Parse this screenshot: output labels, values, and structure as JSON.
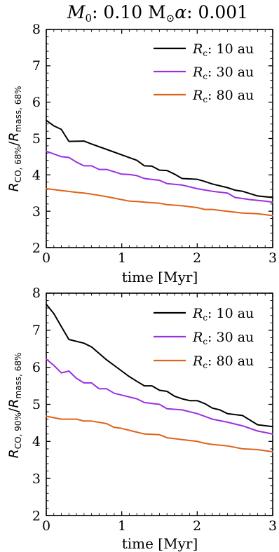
{
  "figure": {
    "title_parts": {
      "m_sym": "M",
      "m_sub": "0",
      "m_val": ": 0.10 M",
      "sun": "⊙",
      "alpha_sym": "α",
      "alpha_val": ": 0.001"
    }
  },
  "chart_data": [
    {
      "type": "line",
      "xlabel": "time [Myr]",
      "ylabel_parts": {
        "r": "R",
        "sub_num": "CO, 68%",
        "slash": "/",
        "r2": "R",
        "sub_den": "mass, 68%"
      },
      "xlim": [
        0,
        3
      ],
      "ylim": [
        2,
        8
      ],
      "xticks": [
        "0",
        "1",
        "2",
        "3"
      ],
      "yticks": [
        "2",
        "3",
        "4",
        "5",
        "6",
        "7",
        "8"
      ],
      "legend_position": "top-right",
      "series": [
        {
          "name_parts": {
            "r": "R",
            "sub": "c",
            "text": ": 10 au"
          },
          "color": "#000000",
          "x": [
            0,
            0.1,
            0.2,
            0.3,
            0.5,
            0.6,
            0.8,
            1.0,
            1.2,
            1.3,
            1.4,
            1.5,
            1.6,
            1.7,
            1.8,
            2.0,
            2.1,
            2.2,
            2.4,
            2.5,
            2.6,
            2.8,
            3.0
          ],
          "values": [
            5.5,
            5.35,
            5.25,
            4.92,
            4.93,
            4.85,
            4.7,
            4.55,
            4.4,
            4.25,
            4.24,
            4.13,
            4.12,
            4.02,
            3.9,
            3.88,
            3.82,
            3.75,
            3.65,
            3.58,
            3.55,
            3.42,
            3.38
          ]
        },
        {
          "name_parts": {
            "r": "R",
            "sub": "c",
            "text": ": 30 au"
          },
          "color": "#9b30e0",
          "x": [
            0,
            0.2,
            0.3,
            0.4,
            0.5,
            0.6,
            0.7,
            0.8,
            1.0,
            1.1,
            1.2,
            1.3,
            1.5,
            1.6,
            1.8,
            2.0,
            2.2,
            2.4,
            2.5,
            2.7,
            2.9,
            3.0
          ],
          "values": [
            4.65,
            4.5,
            4.48,
            4.35,
            4.25,
            4.25,
            4.15,
            4.15,
            4.02,
            4.01,
            3.98,
            3.9,
            3.85,
            3.76,
            3.72,
            3.62,
            3.55,
            3.5,
            3.38,
            3.32,
            3.28,
            3.25
          ]
        },
        {
          "name_parts": {
            "r": "R",
            "sub": "c",
            "text": ": 80 au"
          },
          "color": "#e0621c",
          "x": [
            0,
            0.2,
            0.4,
            0.5,
            0.6,
            0.8,
            1.0,
            1.1,
            1.2,
            1.3,
            1.5,
            1.6,
            1.8,
            2.0,
            2.1,
            2.2,
            2.4,
            2.6,
            2.8,
            3.0
          ],
          "values": [
            3.62,
            3.57,
            3.52,
            3.5,
            3.47,
            3.4,
            3.32,
            3.28,
            3.27,
            3.25,
            3.22,
            3.18,
            3.15,
            3.1,
            3.05,
            3.05,
            3.0,
            2.95,
            2.93,
            2.88
          ]
        }
      ]
    },
    {
      "type": "line",
      "xlabel": "time [Myr]",
      "ylabel_parts": {
        "r": "R",
        "sub_num": "CO, 90%",
        "slash": "/",
        "r2": "R",
        "sub_den": "mass, 68%"
      },
      "xlim": [
        0,
        3
      ],
      "ylim": [
        2,
        8
      ],
      "xticks": [
        "0",
        "1",
        "2",
        "3"
      ],
      "yticks": [
        "2",
        "3",
        "4",
        "5",
        "6",
        "7",
        "8"
      ],
      "legend_position": "top-right",
      "series": [
        {
          "name_parts": {
            "r": "R",
            "sub": "c",
            "text": ": 10 au"
          },
          "color": "#000000",
          "x": [
            0,
            0.1,
            0.2,
            0.3,
            0.5,
            0.6,
            0.8,
            1.0,
            1.1,
            1.2,
            1.3,
            1.4,
            1.5,
            1.6,
            1.7,
            1.8,
            1.9,
            2.0,
            2.1,
            2.2,
            2.3,
            2.4,
            2.6,
            2.8,
            3.0
          ],
          "values": [
            7.7,
            7.45,
            7.1,
            6.75,
            6.65,
            6.55,
            6.2,
            5.9,
            5.75,
            5.62,
            5.5,
            5.5,
            5.38,
            5.35,
            5.22,
            5.15,
            5.1,
            5.1,
            5.02,
            4.9,
            4.85,
            4.75,
            4.7,
            4.45,
            4.4
          ]
        },
        {
          "name_parts": {
            "r": "R",
            "sub": "c",
            "text": ": 30 au"
          },
          "color": "#9b30e0",
          "x": [
            0,
            0.1,
            0.2,
            0.3,
            0.4,
            0.5,
            0.6,
            0.7,
            0.8,
            0.9,
            1.0,
            1.2,
            1.3,
            1.5,
            1.6,
            1.8,
            2.0,
            2.2,
            2.4,
            2.6,
            2.8,
            3.0
          ],
          "values": [
            6.22,
            6.05,
            5.85,
            5.9,
            5.7,
            5.58,
            5.58,
            5.42,
            5.42,
            5.3,
            5.25,
            5.15,
            5.05,
            5.0,
            4.88,
            4.85,
            4.75,
            4.6,
            4.52,
            4.42,
            4.28,
            4.2
          ]
        },
        {
          "name_parts": {
            "r": "R",
            "sub": "c",
            "text": ": 80 au"
          },
          "color": "#e0621c",
          "x": [
            0,
            0.2,
            0.4,
            0.5,
            0.6,
            0.8,
            0.9,
            1.0,
            1.1,
            1.2,
            1.3,
            1.5,
            1.6,
            1.8,
            2.0,
            2.1,
            2.2,
            2.4,
            2.6,
            2.8,
            3.0
          ],
          "values": [
            4.68,
            4.6,
            4.6,
            4.55,
            4.55,
            4.48,
            4.38,
            4.35,
            4.3,
            4.25,
            4.2,
            4.18,
            4.1,
            4.05,
            4.0,
            3.95,
            3.92,
            3.88,
            3.8,
            3.78,
            3.72
          ]
        }
      ]
    }
  ]
}
